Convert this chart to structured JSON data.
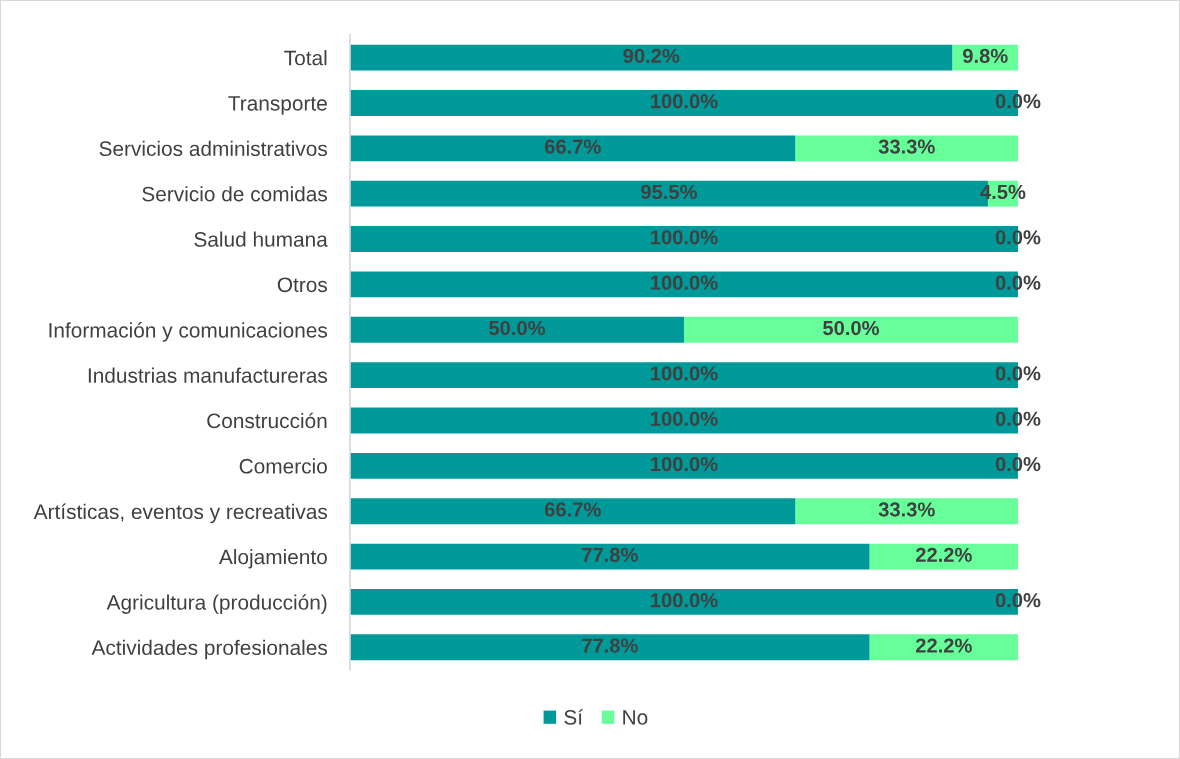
{
  "chart_data": {
    "type": "bar",
    "orientation": "horizontal",
    "stacked": true,
    "legend": "bottom",
    "grid": false,
    "categories": [
      "Total",
      "Transporte",
      "Servicios administrativos",
      "Servicio de comidas",
      "Salud humana",
      "Otros",
      "Información y comunicaciones",
      "Industrias manufactureras",
      "Construcción",
      "Comercio",
      "Artísticas, eventos y recreativas",
      "Alojamiento",
      "Agricultura (producción)",
      "Actividades profesionales"
    ],
    "series": [
      {
        "name": "Sí",
        "color": "#009999",
        "values": [
          90.2,
          100.0,
          66.7,
          95.5,
          100.0,
          100.0,
          50.0,
          100.0,
          100.0,
          100.0,
          66.7,
          77.8,
          100.0,
          77.8
        ],
        "value_labels": [
          "90.2%",
          "100.0%",
          "66.7%",
          "95.5%",
          "100.0%",
          "100.0%",
          "50.0%",
          "100.0%",
          "100.0%",
          "100.0%",
          "66.7%",
          "77.8%",
          "100.0%",
          "77.8%"
        ]
      },
      {
        "name": "No",
        "color": "#66ff99",
        "values": [
          9.8,
          0.0,
          33.3,
          4.5,
          0.0,
          0.0,
          50.0,
          0.0,
          0.0,
          0.0,
          33.3,
          22.2,
          0.0,
          22.2
        ],
        "value_labels": [
          "9.8%",
          "0.0%",
          "33.3%",
          "4.5%",
          "0.0%",
          "0.0%",
          "50.0%",
          "0.0%",
          "0.0%",
          "0.0%",
          "33.3%",
          "22.2%",
          "0.0%",
          "22.2%"
        ]
      }
    ]
  }
}
